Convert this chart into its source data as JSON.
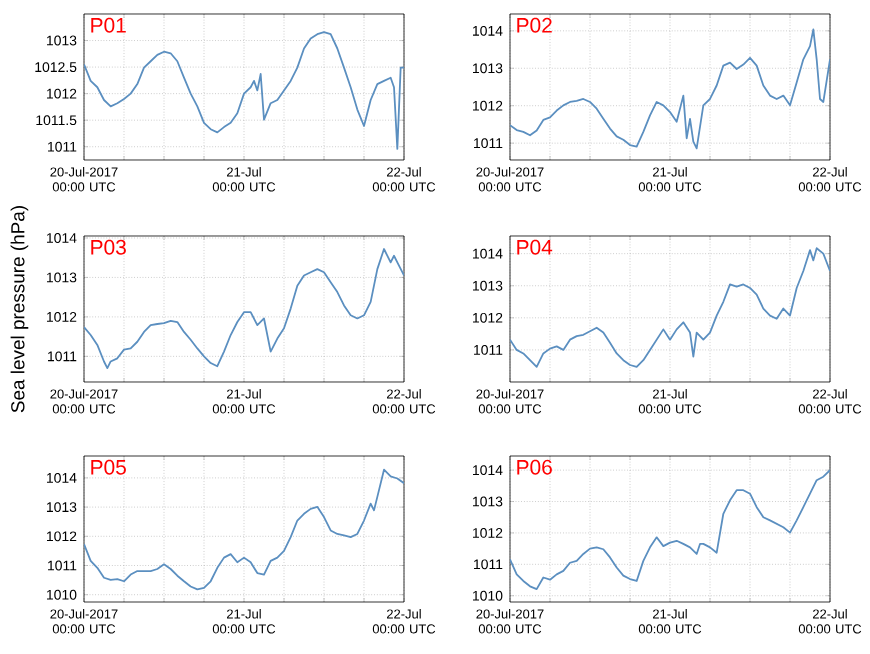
{
  "chart_data": [
    {
      "type": "line",
      "title": "P01",
      "color": "#5b8fc0",
      "grid": true,
      "xlim": [
        "2017-07-20T00:00",
        "2017-07-22T00:00"
      ],
      "ylim": [
        1010.75,
        1013.5
      ],
      "yticks": [
        1011,
        1011.5,
        1012,
        1012.5,
        1013
      ],
      "xticks": [
        {
          "value": "2017-07-20T00:00",
          "label": "20-Jul-2017 00:00 UTC"
        },
        {
          "value": "2017-07-20T06:00",
          "label": null
        },
        {
          "value": "2017-07-20T12:00",
          "label": null
        },
        {
          "value": "2017-07-20T18:00",
          "label": null
        },
        {
          "value": "2017-07-21T00:00",
          "label": "21-Jul 00:00 UTC"
        },
        {
          "value": "2017-07-21T06:00",
          "label": null
        },
        {
          "value": "2017-07-21T12:00",
          "label": null
        },
        {
          "value": "2017-07-21T18:00",
          "label": null
        },
        {
          "value": "2017-07-22T00:00",
          "label": "22-Jul 00:00 UTC"
        }
      ],
      "x": [
        "2017-07-20T00:00",
        "2017-07-20T01:00",
        "2017-07-20T02:00",
        "2017-07-20T03:00",
        "2017-07-20T04:00",
        "2017-07-20T05:00",
        "2017-07-20T06:00",
        "2017-07-20T07:00",
        "2017-07-20T08:00",
        "2017-07-20T09:00",
        "2017-07-20T10:00",
        "2017-07-20T11:00",
        "2017-07-20T12:00",
        "2017-07-20T13:00",
        "2017-07-20T14:00",
        "2017-07-20T15:00",
        "2017-07-20T16:00",
        "2017-07-20T17:00",
        "2017-07-20T18:00",
        "2017-07-20T19:00",
        "2017-07-20T20:00",
        "2017-07-20T21:00",
        "2017-07-20T22:00",
        "2017-07-20T23:00",
        "2017-07-21T00:00",
        "2017-07-21T01:00",
        "2017-07-21T01:30",
        "2017-07-21T02:00",
        "2017-07-21T02:30",
        "2017-07-21T03:00",
        "2017-07-21T04:00",
        "2017-07-21T05:00",
        "2017-07-21T06:00",
        "2017-07-21T07:00",
        "2017-07-21T08:00",
        "2017-07-21T09:00",
        "2017-07-21T10:00",
        "2017-07-21T11:00",
        "2017-07-21T12:00",
        "2017-07-21T13:00",
        "2017-07-21T14:00",
        "2017-07-21T15:00",
        "2017-07-21T16:00",
        "2017-07-21T17:00",
        "2017-07-21T18:00",
        "2017-07-21T19:00",
        "2017-07-21T20:00",
        "2017-07-21T21:00",
        "2017-07-21T22:00",
        "2017-07-21T22:30",
        "2017-07-21T23:00",
        "2017-07-21T23:30",
        "2017-07-22T00:00"
      ],
      "values": [
        1012.55,
        1012.24,
        1012.12,
        1011.88,
        1011.76,
        1011.82,
        1011.9,
        1012.0,
        1012.18,
        1012.49,
        1012.61,
        1012.73,
        1012.79,
        1012.76,
        1012.61,
        1012.3,
        1012.0,
        1011.76,
        1011.45,
        1011.33,
        1011.27,
        1011.37,
        1011.45,
        1011.63,
        1012.0,
        1012.12,
        1012.24,
        1012.06,
        1012.37,
        1011.51,
        1011.82,
        1011.88,
        1012.06,
        1012.24,
        1012.49,
        1012.85,
        1013.04,
        1013.12,
        1013.16,
        1013.12,
        1012.85,
        1012.49,
        1012.12,
        1011.7,
        1011.39,
        1011.88,
        1012.18,
        1012.24,
        1012.3,
        1012.12,
        1010.96,
        1012.49,
        1012.49
      ]
    },
    {
      "type": "line",
      "title": "P02",
      "color": "#5b8fc0",
      "grid": true,
      "xlim": [
        "2017-07-20T00:00",
        "2017-07-22T00:00"
      ],
      "ylim": [
        1010.55,
        1014.45
      ],
      "yticks": [
        1011,
        1012,
        1013,
        1014
      ],
      "xticks": [
        {
          "value": "2017-07-20T00:00",
          "label": "20-Jul-2017 00:00 UTC"
        },
        {
          "value": "2017-07-20T06:00",
          "label": null
        },
        {
          "value": "2017-07-20T12:00",
          "label": null
        },
        {
          "value": "2017-07-20T18:00",
          "label": null
        },
        {
          "value": "2017-07-21T00:00",
          "label": "21-Jul 00:00 UTC"
        },
        {
          "value": "2017-07-21T06:00",
          "label": null
        },
        {
          "value": "2017-07-21T12:00",
          "label": null
        },
        {
          "value": "2017-07-21T18:00",
          "label": null
        },
        {
          "value": "2017-07-22T00:00",
          "label": "22-Jul 00:00 UTC"
        }
      ],
      "x": [
        "2017-07-20T00:00",
        "2017-07-20T01:00",
        "2017-07-20T02:00",
        "2017-07-20T03:00",
        "2017-07-20T04:00",
        "2017-07-20T05:00",
        "2017-07-20T06:00",
        "2017-07-20T07:00",
        "2017-07-20T08:00",
        "2017-07-20T09:00",
        "2017-07-20T10:00",
        "2017-07-20T11:00",
        "2017-07-20T12:00",
        "2017-07-20T13:00",
        "2017-07-20T14:00",
        "2017-07-20T15:00",
        "2017-07-20T16:00",
        "2017-07-20T17:00",
        "2017-07-20T18:00",
        "2017-07-20T19:00",
        "2017-07-20T20:00",
        "2017-07-20T21:00",
        "2017-07-20T22:00",
        "2017-07-20T23:00",
        "2017-07-21T00:00",
        "2017-07-21T01:00",
        "2017-07-21T02:00",
        "2017-07-21T02:30",
        "2017-07-21T03:00",
        "2017-07-21T03:30",
        "2017-07-21T04:00",
        "2017-07-21T05:00",
        "2017-07-21T06:00",
        "2017-07-21T07:00",
        "2017-07-21T08:00",
        "2017-07-21T09:00",
        "2017-07-21T10:00",
        "2017-07-21T11:00",
        "2017-07-21T12:00",
        "2017-07-21T13:00",
        "2017-07-21T14:00",
        "2017-07-21T15:00",
        "2017-07-21T16:00",
        "2017-07-21T17:00",
        "2017-07-21T18:00",
        "2017-07-21T19:00",
        "2017-07-21T20:00",
        "2017-07-21T21:00",
        "2017-07-21T21:30",
        "2017-07-21T22:00",
        "2017-07-21T22:30",
        "2017-07-21T23:00",
        "2017-07-22T00:00"
      ],
      "values": [
        1011.48,
        1011.35,
        1011.3,
        1011.21,
        1011.34,
        1011.62,
        1011.69,
        1011.87,
        1012.01,
        1012.1,
        1012.13,
        1012.18,
        1012.1,
        1011.92,
        1011.65,
        1011.39,
        1011.18,
        1011.09,
        1010.95,
        1010.91,
        1011.3,
        1011.74,
        1012.1,
        1012.01,
        1011.83,
        1011.57,
        1012.27,
        1011.13,
        1011.65,
        1011.04,
        1010.86,
        1012.01,
        1012.18,
        1012.54,
        1013.07,
        1013.15,
        1012.98,
        1013.1,
        1013.28,
        1013.07,
        1012.54,
        1012.27,
        1012.18,
        1012.27,
        1012.01,
        1012.62,
        1013.24,
        1013.59,
        1014.04,
        1013.24,
        1012.18,
        1012.1,
        1013.24
      ]
    },
    {
      "type": "line",
      "title": "P03",
      "ylabel": "Sea level pressure (hPa)",
      "color": "#5b8fc0",
      "grid": true,
      "xlim": [
        "2017-07-20T00:00",
        "2017-07-22T00:00"
      ],
      "ylim": [
        1010.35,
        1014.05
      ],
      "yticks": [
        1011,
        1012,
        1013,
        1014
      ],
      "xticks": [
        {
          "value": "2017-07-20T00:00",
          "label": "20-Jul-2017 00:00 UTC"
        },
        {
          "value": "2017-07-20T06:00",
          "label": null
        },
        {
          "value": "2017-07-20T12:00",
          "label": null
        },
        {
          "value": "2017-07-20T18:00",
          "label": null
        },
        {
          "value": "2017-07-21T00:00",
          "label": "21-Jul 00:00 UTC"
        },
        {
          "value": "2017-07-21T06:00",
          "label": null
        },
        {
          "value": "2017-07-21T12:00",
          "label": null
        },
        {
          "value": "2017-07-21T18:00",
          "label": null
        },
        {
          "value": "2017-07-22T00:00",
          "label": "22-Jul 00:00 UTC"
        }
      ],
      "x": [
        "2017-07-20T00:00",
        "2017-07-20T01:00",
        "2017-07-20T02:00",
        "2017-07-20T03:00",
        "2017-07-20T03:30",
        "2017-07-20T04:00",
        "2017-07-20T05:00",
        "2017-07-20T06:00",
        "2017-07-20T07:00",
        "2017-07-20T08:00",
        "2017-07-20T09:00",
        "2017-07-20T10:00",
        "2017-07-20T11:00",
        "2017-07-20T12:00",
        "2017-07-20T13:00",
        "2017-07-20T14:00",
        "2017-07-20T15:00",
        "2017-07-20T16:00",
        "2017-07-20T17:00",
        "2017-07-20T18:00",
        "2017-07-20T19:00",
        "2017-07-20T20:00",
        "2017-07-20T21:00",
        "2017-07-20T22:00",
        "2017-07-20T23:00",
        "2017-07-21T00:00",
        "2017-07-21T01:00",
        "2017-07-21T02:00",
        "2017-07-21T03:00",
        "2017-07-21T04:00",
        "2017-07-21T05:00",
        "2017-07-21T06:00",
        "2017-07-21T07:00",
        "2017-07-21T08:00",
        "2017-07-21T09:00",
        "2017-07-21T10:00",
        "2017-07-21T11:00",
        "2017-07-21T12:00",
        "2017-07-21T13:00",
        "2017-07-21T14:00",
        "2017-07-21T15:00",
        "2017-07-21T16:00",
        "2017-07-21T17:00",
        "2017-07-21T18:00",
        "2017-07-21T19:00",
        "2017-07-21T20:00",
        "2017-07-21T21:00",
        "2017-07-21T22:00",
        "2017-07-21T22:30",
        "2017-07-21T23:00",
        "2017-07-22T00:00"
      ],
      "values": [
        1011.74,
        1011.54,
        1011.29,
        1010.87,
        1010.7,
        1010.87,
        1010.95,
        1011.17,
        1011.2,
        1011.37,
        1011.62,
        1011.79,
        1011.82,
        1011.84,
        1011.9,
        1011.87,
        1011.62,
        1011.42,
        1011.2,
        1011.0,
        1010.83,
        1010.75,
        1011.12,
        1011.54,
        1011.87,
        1012.12,
        1012.12,
        1011.79,
        1011.96,
        1011.12,
        1011.45,
        1011.71,
        1012.21,
        1012.79,
        1013.05,
        1013.13,
        1013.21,
        1013.13,
        1012.88,
        1012.63,
        1012.29,
        1012.04,
        1011.96,
        1012.04,
        1012.38,
        1013.21,
        1013.72,
        1013.38,
        1013.55,
        1013.38,
        1013.05
      ]
    },
    {
      "type": "line",
      "title": "P04",
      "color": "#5b8fc0",
      "grid": true,
      "xlim": [
        "2017-07-20T00:00",
        "2017-07-22T00:00"
      ],
      "ylim": [
        1010.0,
        1014.55
      ],
      "yticks": [
        1011,
        1012,
        1013,
        1014
      ],
      "xticks": [
        {
          "value": "2017-07-20T00:00",
          "label": "20-Jul-2017 00:00 UTC"
        },
        {
          "value": "2017-07-20T06:00",
          "label": null
        },
        {
          "value": "2017-07-20T12:00",
          "label": null
        },
        {
          "value": "2017-07-20T18:00",
          "label": null
        },
        {
          "value": "2017-07-21T00:00",
          "label": "21-Jul 00:00 UTC"
        },
        {
          "value": "2017-07-21T06:00",
          "label": null
        },
        {
          "value": "2017-07-21T12:00",
          "label": null
        },
        {
          "value": "2017-07-21T18:00",
          "label": null
        },
        {
          "value": "2017-07-22T00:00",
          "label": "22-Jul 00:00 UTC"
        }
      ],
      "x": [
        "2017-07-20T00:00",
        "2017-07-20T01:00",
        "2017-07-20T02:00",
        "2017-07-20T03:00",
        "2017-07-20T04:00",
        "2017-07-20T05:00",
        "2017-07-20T06:00",
        "2017-07-20T07:00",
        "2017-07-20T08:00",
        "2017-07-20T09:00",
        "2017-07-20T10:00",
        "2017-07-20T11:00",
        "2017-07-20T12:00",
        "2017-07-20T13:00",
        "2017-07-20T14:00",
        "2017-07-20T15:00",
        "2017-07-20T16:00",
        "2017-07-20T17:00",
        "2017-07-20T18:00",
        "2017-07-20T19:00",
        "2017-07-20T20:00",
        "2017-07-20T21:00",
        "2017-07-20T22:00",
        "2017-07-20T23:00",
        "2017-07-21T00:00",
        "2017-07-21T01:00",
        "2017-07-21T02:00",
        "2017-07-21T03:00",
        "2017-07-21T03:30",
        "2017-07-21T04:00",
        "2017-07-21T05:00",
        "2017-07-21T06:00",
        "2017-07-21T07:00",
        "2017-07-21T08:00",
        "2017-07-21T09:00",
        "2017-07-21T10:00",
        "2017-07-21T11:00",
        "2017-07-21T12:00",
        "2017-07-21T13:00",
        "2017-07-21T14:00",
        "2017-07-21T15:00",
        "2017-07-21T16:00",
        "2017-07-21T17:00",
        "2017-07-21T18:00",
        "2017-07-21T19:00",
        "2017-07-21T20:00",
        "2017-07-21T21:00",
        "2017-07-21T21:30",
        "2017-07-21T22:00",
        "2017-07-21T23:00",
        "2017-07-22T00:00"
      ],
      "values": [
        1011.32,
        1011.0,
        1010.89,
        1010.68,
        1010.47,
        1010.89,
        1011.04,
        1011.11,
        1011.0,
        1011.32,
        1011.43,
        1011.47,
        1011.58,
        1011.69,
        1011.54,
        1011.22,
        1010.89,
        1010.68,
        1010.53,
        1010.47,
        1010.68,
        1011.0,
        1011.32,
        1011.64,
        1011.32,
        1011.64,
        1011.86,
        1011.54,
        1010.79,
        1011.54,
        1011.32,
        1011.54,
        1012.07,
        1012.5,
        1013.04,
        1012.97,
        1013.04,
        1012.93,
        1012.72,
        1012.29,
        1012.07,
        1011.97,
        1012.29,
        1012.07,
        1012.93,
        1013.46,
        1014.11,
        1013.79,
        1014.17,
        1014.0,
        1013.46
      ]
    },
    {
      "type": "line",
      "title": "P05",
      "color": "#5b8fc0",
      "grid": true,
      "xlim": [
        "2017-07-20T00:00",
        "2017-07-22T00:00"
      ],
      "ylim": [
        1009.75,
        1014.75
      ],
      "yticks": [
        1010,
        1011,
        1012,
        1013,
        1014
      ],
      "xticks": [
        {
          "value": "2017-07-20T00:00",
          "label": "20-Jul-2017 00:00 UTC"
        },
        {
          "value": "2017-07-20T06:00",
          "label": null
        },
        {
          "value": "2017-07-20T12:00",
          "label": null
        },
        {
          "value": "2017-07-20T18:00",
          "label": null
        },
        {
          "value": "2017-07-21T00:00",
          "label": "21-Jul 00:00 UTC"
        },
        {
          "value": "2017-07-21T06:00",
          "label": null
        },
        {
          "value": "2017-07-21T12:00",
          "label": null
        },
        {
          "value": "2017-07-21T18:00",
          "label": null
        },
        {
          "value": "2017-07-22T00:00",
          "label": "22-Jul 00:00 UTC"
        }
      ],
      "x": [
        "2017-07-20T00:00",
        "2017-07-20T01:00",
        "2017-07-20T02:00",
        "2017-07-20T03:00",
        "2017-07-20T04:00",
        "2017-07-20T05:00",
        "2017-07-20T06:00",
        "2017-07-20T07:00",
        "2017-07-20T08:00",
        "2017-07-20T09:00",
        "2017-07-20T10:00",
        "2017-07-20T11:00",
        "2017-07-20T12:00",
        "2017-07-20T13:00",
        "2017-07-20T14:00",
        "2017-07-20T15:00",
        "2017-07-20T16:00",
        "2017-07-20T17:00",
        "2017-07-20T18:00",
        "2017-07-20T19:00",
        "2017-07-20T20:00",
        "2017-07-20T21:00",
        "2017-07-20T22:00",
        "2017-07-20T23:00",
        "2017-07-21T00:00",
        "2017-07-21T01:00",
        "2017-07-21T02:00",
        "2017-07-21T03:00",
        "2017-07-21T04:00",
        "2017-07-21T05:00",
        "2017-07-21T06:00",
        "2017-07-21T07:00",
        "2017-07-21T08:00",
        "2017-07-21T09:00",
        "2017-07-21T10:00",
        "2017-07-21T11:00",
        "2017-07-21T12:00",
        "2017-07-21T13:00",
        "2017-07-21T14:00",
        "2017-07-21T15:00",
        "2017-07-21T16:00",
        "2017-07-21T17:00",
        "2017-07-21T18:00",
        "2017-07-21T19:00",
        "2017-07-21T19:30",
        "2017-07-21T20:00",
        "2017-07-21T21:00",
        "2017-07-21T22:00",
        "2017-07-21T23:00",
        "2017-07-22T00:00"
      ],
      "values": [
        1011.73,
        1011.16,
        1010.92,
        1010.58,
        1010.51,
        1010.53,
        1010.46,
        1010.69,
        1010.81,
        1010.81,
        1010.81,
        1010.88,
        1011.04,
        1010.88,
        1010.65,
        1010.46,
        1010.28,
        1010.18,
        1010.23,
        1010.46,
        1010.92,
        1011.27,
        1011.39,
        1011.11,
        1011.27,
        1011.11,
        1010.74,
        1010.69,
        1011.16,
        1011.27,
        1011.5,
        1011.97,
        1012.54,
        1012.77,
        1012.94,
        1013.01,
        1012.66,
        1012.2,
        1012.08,
        1012.03,
        1011.97,
        1012.08,
        1012.54,
        1013.12,
        1012.89,
        1013.35,
        1014.28,
        1014.05,
        1013.98,
        1013.82
      ]
    },
    {
      "type": "line",
      "title": "P06",
      "color": "#5b8fc0",
      "grid": true,
      "xlim": [
        "2017-07-20T00:00",
        "2017-07-22T00:00"
      ],
      "ylim": [
        1009.8,
        1014.45
      ],
      "yticks": [
        1010,
        1011,
        1012,
        1013,
        1014
      ],
      "xticks": [
        {
          "value": "2017-07-20T00:00",
          "label": "20-Jul-2017 00:00 UTC"
        },
        {
          "value": "2017-07-20T06:00",
          "label": null
        },
        {
          "value": "2017-07-20T12:00",
          "label": null
        },
        {
          "value": "2017-07-20T18:00",
          "label": null
        },
        {
          "value": "2017-07-21T00:00",
          "label": "21-Jul 00:00 UTC"
        },
        {
          "value": "2017-07-21T06:00",
          "label": null
        },
        {
          "value": "2017-07-21T12:00",
          "label": null
        },
        {
          "value": "2017-07-21T18:00",
          "label": null
        },
        {
          "value": "2017-07-22T00:00",
          "label": "22-Jul 00:00 UTC"
        }
      ],
      "x": [
        "2017-07-20T00:00",
        "2017-07-20T01:00",
        "2017-07-20T02:00",
        "2017-07-20T03:00",
        "2017-07-20T04:00",
        "2017-07-20T05:00",
        "2017-07-20T06:00",
        "2017-07-20T07:00",
        "2017-07-20T08:00",
        "2017-07-20T09:00",
        "2017-07-20T10:00",
        "2017-07-20T11:00",
        "2017-07-20T12:00",
        "2017-07-20T13:00",
        "2017-07-20T14:00",
        "2017-07-20T15:00",
        "2017-07-20T16:00",
        "2017-07-20T17:00",
        "2017-07-20T18:00",
        "2017-07-20T19:00",
        "2017-07-20T20:00",
        "2017-07-20T21:00",
        "2017-07-20T22:00",
        "2017-07-20T23:00",
        "2017-07-21T00:00",
        "2017-07-21T01:00",
        "2017-07-21T02:00",
        "2017-07-21T03:00",
        "2017-07-21T04:00",
        "2017-07-21T04:30",
        "2017-07-21T05:00",
        "2017-07-21T06:00",
        "2017-07-21T07:00",
        "2017-07-21T08:00",
        "2017-07-21T09:00",
        "2017-07-21T10:00",
        "2017-07-21T11:00",
        "2017-07-21T12:00",
        "2017-07-21T13:00",
        "2017-07-21T14:00",
        "2017-07-21T15:00",
        "2017-07-21T16:00",
        "2017-07-21T17:00",
        "2017-07-21T18:00",
        "2017-07-21T19:00",
        "2017-07-21T20:00",
        "2017-07-21T21:00",
        "2017-07-21T22:00",
        "2017-07-21T23:00",
        "2017-07-22T00:00"
      ],
      "values": [
        1011.16,
        1010.68,
        1010.47,
        1010.3,
        1010.21,
        1010.58,
        1010.51,
        1010.68,
        1010.79,
        1011.05,
        1011.11,
        1011.33,
        1011.5,
        1011.54,
        1011.48,
        1011.22,
        1010.9,
        1010.64,
        1010.53,
        1010.47,
        1011.11,
        1011.54,
        1011.86,
        1011.58,
        1011.69,
        1011.75,
        1011.65,
        1011.54,
        1011.33,
        1011.65,
        1011.65,
        1011.54,
        1011.37,
        1012.61,
        1013.04,
        1013.36,
        1013.36,
        1013.25,
        1012.82,
        1012.5,
        1012.4,
        1012.29,
        1012.18,
        1012.01,
        1012.4,
        1012.82,
        1013.25,
        1013.68,
        1013.79,
        1014.0
      ]
    }
  ]
}
